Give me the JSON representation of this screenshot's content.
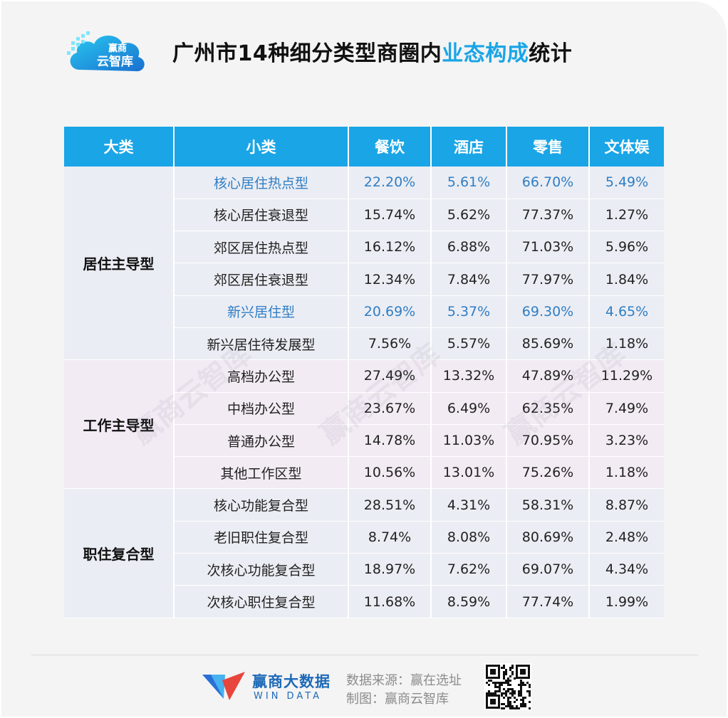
{
  "header": {
    "logo_text_top": "赢商",
    "logo_text_bottom": "云智库",
    "title_pre": "广州市14种细分类型商圈内",
    "title_highlight": "业态构成",
    "title_post": "统计"
  },
  "table": {
    "headers": [
      "大类",
      "小类",
      "餐饮",
      "酒店",
      "零售",
      "文体娱"
    ],
    "groups": [
      {
        "name": "居住主导型",
        "rows": [
          {
            "sub": "核心居住热点型",
            "v": [
              "22.20%",
              "5.61%",
              "66.70%",
              "5.49%"
            ],
            "highlight": true
          },
          {
            "sub": "核心居住衰退型",
            "v": [
              "15.74%",
              "5.62%",
              "77.37%",
              "1.27%"
            ],
            "highlight": false
          },
          {
            "sub": "郊区居住热点型",
            "v": [
              "16.12%",
              "6.88%",
              "71.03%",
              "5.96%"
            ],
            "highlight": false
          },
          {
            "sub": "郊区居住衰退型",
            "v": [
              "12.34%",
              "7.84%",
              "77.97%",
              "1.84%"
            ],
            "highlight": false
          },
          {
            "sub": "新兴居住型",
            "v": [
              "20.69%",
              "5.37%",
              "69.30%",
              "4.65%"
            ],
            "highlight": true
          },
          {
            "sub": "新兴居住待发展型",
            "v": [
              "7.56%",
              "5.57%",
              "85.69%",
              "1.18%"
            ],
            "highlight": false
          }
        ]
      },
      {
        "name": "工作主导型",
        "rows": [
          {
            "sub": "高档办公型",
            "v": [
              "27.49%",
              "13.32%",
              "47.89%",
              "11.29%"
            ],
            "highlight": false
          },
          {
            "sub": "中档办公型",
            "v": [
              "23.67%",
              "6.49%",
              "62.35%",
              "7.49%"
            ],
            "highlight": false
          },
          {
            "sub": "普通办公型",
            "v": [
              "14.78%",
              "11.03%",
              "70.95%",
              "3.23%"
            ],
            "highlight": false
          },
          {
            "sub": "其他工作区型",
            "v": [
              "10.56%",
              "13.01%",
              "75.26%",
              "1.18%"
            ],
            "highlight": false
          }
        ]
      },
      {
        "name": "职住复合型",
        "rows": [
          {
            "sub": "核心功能复合型",
            "v": [
              "28.51%",
              "4.31%",
              "58.31%",
              "8.87%"
            ],
            "highlight": false
          },
          {
            "sub": "老旧职住复合型",
            "v": [
              "8.74%",
              "8.08%",
              "80.69%",
              "2.48%"
            ],
            "highlight": false
          },
          {
            "sub": "次核心功能复合型",
            "v": [
              "18.97%",
              "7.62%",
              "69.07%",
              "4.34%"
            ],
            "highlight": false
          },
          {
            "sub": "次核心职住复合型",
            "v": [
              "11.68%",
              "8.59%",
              "77.74%",
              "1.99%"
            ],
            "highlight": false
          }
        ]
      }
    ]
  },
  "watermark": "赢商云智库",
  "footer": {
    "brand_cn": "赢商大数据",
    "brand_en": "WIN DATA",
    "source": "数据来源：赢在选址",
    "maker": "制图：赢商云智库"
  },
  "colors": {
    "accent": "#1aa5e6",
    "highlight_text": "#2f7ec4",
    "brand": "#1e6ab8"
  }
}
